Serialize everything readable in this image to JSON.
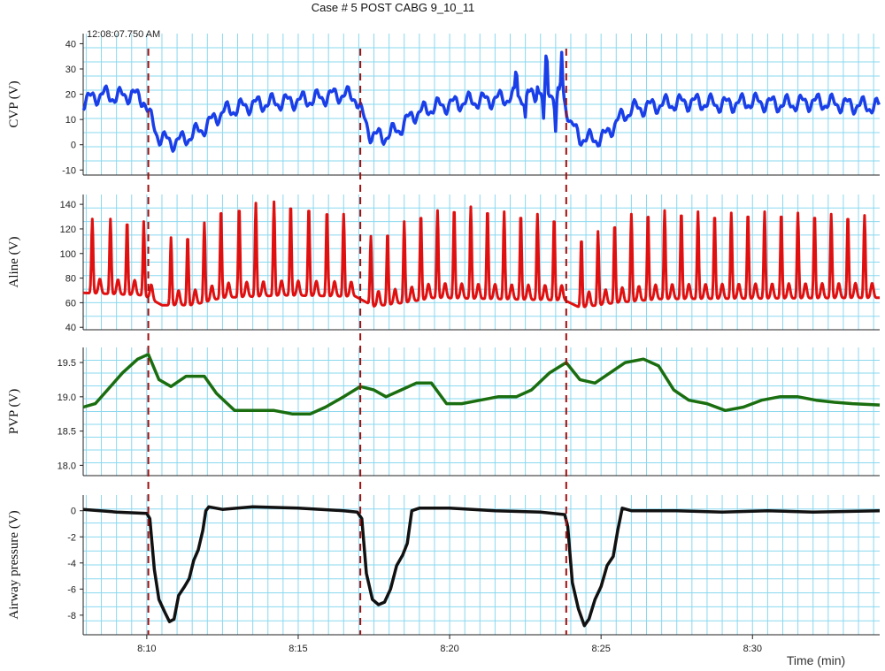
{
  "chart_data": {
    "type": "line",
    "title": "Case # 5 POST CABG 9_10_11",
    "timestamp": "12:08:07.750  AM",
    "xlabel": "Time (min)",
    "x_ticks": [
      "8:10",
      "8:15",
      "8:20",
      "8:25",
      "8:30"
    ],
    "x_tick_values": [
      10,
      15,
      20,
      25,
      30
    ],
    "xlim": [
      7.9,
      34.2
    ],
    "event_lines_x": [
      10.05,
      17.05,
      23.85
    ],
    "colors": {
      "cvp": "#1a3fe8",
      "aline": "#e01010",
      "pvp": "#1a6e10",
      "airway": "#111111",
      "grid": "#8ad8ef",
      "event": "#a01010"
    },
    "panels": [
      {
        "id": "cvp",
        "ylabel": "CVP (V)",
        "ylim": [
          -12,
          44
        ],
        "yticks": [
          -10,
          0,
          10,
          20,
          30,
          40
        ],
        "ytick_labels": [
          "-10",
          "0",
          "10",
          "20",
          "30",
          "40"
        ],
        "series": {
          "color": "cvp",
          "x": [
            7.9,
            8.5,
            9.0,
            9.5,
            9.9,
            10.1,
            10.4,
            10.8,
            11.2,
            11.8,
            12.5,
            13.5,
            14.5,
            15.5,
            16.3,
            16.9,
            17.1,
            17.4,
            17.8,
            18.3,
            18.8,
            19.5,
            20.5,
            21.5,
            22.2,
            22.8,
            23.3,
            23.8,
            24.0,
            24.3,
            24.7,
            25.1,
            25.5,
            26.0,
            27.0,
            28.0,
            29.0,
            30.0,
            31.0,
            32.0,
            33.0,
            34.2
          ],
          "y": [
            17,
            20,
            19,
            20,
            18,
            11,
            3,
            1,
            2,
            6,
            13,
            16,
            17,
            18,
            20,
            19,
            12,
            4,
            3,
            6,
            12,
            15,
            17,
            18,
            19,
            20,
            21,
            18,
            8,
            3,
            2,
            3,
            9,
            14,
            16,
            17,
            16,
            17,
            16,
            17,
            16,
            15
          ],
          "spikes": [
            {
              "x": 22.2,
              "y": 31
            },
            {
              "x": 22.5,
              "y": 10
            },
            {
              "x": 22.9,
              "y": 25
            },
            {
              "x": 23.1,
              "y": 8
            },
            {
              "x": 23.2,
              "y": 37
            },
            {
              "x": 23.5,
              "y": 6
            },
            {
              "x": 23.7,
              "y": 36
            }
          ]
        }
      },
      {
        "id": "aline",
        "ylabel": "Aline (V)",
        "ylim": [
          38,
          148
        ],
        "yticks": [
          40,
          60,
          80,
          100,
          120,
          140
        ],
        "ytick_labels": [
          "40",
          "60",
          "80",
          "100",
          "120",
          "140"
        ],
        "series": {
          "color": "aline",
          "beats": [
            {
              "x": 8.2,
              "peak": 128
            },
            {
              "x": 8.8,
              "peak": 128
            },
            {
              "x": 9.35,
              "peak": 127
            },
            {
              "x": 9.9,
              "peak": 126
            },
            {
              "x": 10.8,
              "peak": 113
            },
            {
              "x": 11.35,
              "peak": 115
            },
            {
              "x": 11.9,
              "peak": 125
            },
            {
              "x": 12.45,
              "peak": 137
            },
            {
              "x": 13.05,
              "peak": 139
            },
            {
              "x": 13.6,
              "peak": 141
            },
            {
              "x": 14.2,
              "peak": 142
            },
            {
              "x": 14.75,
              "peak": 141
            },
            {
              "x": 15.35,
              "peak": 139
            },
            {
              "x": 15.95,
              "peak": 136
            },
            {
              "x": 16.5,
              "peak": 132
            },
            {
              "x": 17.4,
              "peak": 114
            },
            {
              "x": 17.95,
              "peak": 118
            },
            {
              "x": 18.5,
              "peak": 126
            },
            {
              "x": 19.05,
              "peak": 133
            },
            {
              "x": 19.6,
              "peak": 135
            },
            {
              "x": 20.15,
              "peak": 138
            },
            {
              "x": 20.7,
              "peak": 138
            },
            {
              "x": 21.25,
              "peak": 137
            },
            {
              "x": 21.8,
              "peak": 134
            },
            {
              "x": 22.35,
              "peak": 133
            },
            {
              "x": 22.9,
              "peak": 132
            },
            {
              "x": 23.45,
              "peak": 130
            },
            {
              "x": 24.35,
              "peak": 113
            },
            {
              "x": 24.9,
              "peak": 118
            },
            {
              "x": 25.45,
              "peak": 125
            },
            {
              "x": 26.0,
              "peak": 132
            },
            {
              "x": 26.55,
              "peak": 134
            },
            {
              "x": 27.1,
              "peak": 135
            },
            {
              "x": 27.65,
              "peak": 135
            },
            {
              "x": 28.2,
              "peak": 134
            },
            {
              "x": 28.75,
              "peak": 133
            },
            {
              "x": 29.3,
              "peak": 133
            },
            {
              "x": 29.85,
              "peak": 134
            },
            {
              "x": 30.4,
              "peak": 134
            },
            {
              "x": 30.95,
              "peak": 134
            },
            {
              "x": 31.5,
              "peak": 133
            },
            {
              "x": 32.05,
              "peak": 133
            },
            {
              "x": 32.6,
              "peak": 132
            },
            {
              "x": 33.15,
              "peak": 132
            },
            {
              "x": 33.7,
              "peak": 131
            }
          ],
          "baseline_x": [
            7.9,
            9.9,
            10.5,
            11.5,
            12.5,
            14.5,
            16.9,
            17.5,
            18.5,
            19.5,
            21.5,
            23.8,
            24.3,
            25.5,
            27.0,
            34.2
          ],
          "baseline_y": [
            68,
            66,
            58,
            58,
            64,
            66,
            65,
            57,
            60,
            64,
            63,
            62,
            56,
            60,
            63,
            64
          ]
        }
      },
      {
        "id": "pvp",
        "ylabel": "PVP (V)",
        "ylim": [
          17.85,
          19.72
        ],
        "yticks": [
          18.0,
          18.5,
          19.0,
          19.5
        ],
        "ytick_labels": [
          "18.0",
          "18.5",
          "19.0",
          "19.5"
        ],
        "series": {
          "color": "pvp",
          "x": [
            7.9,
            8.3,
            8.7,
            9.2,
            9.7,
            10.05,
            10.4,
            10.8,
            11.3,
            11.9,
            12.3,
            12.9,
            13.5,
            14.2,
            14.8,
            15.4,
            15.9,
            16.5,
            17.05,
            17.5,
            17.9,
            18.4,
            18.9,
            19.4,
            19.9,
            20.4,
            21.0,
            21.6,
            22.2,
            22.7,
            23.3,
            23.85,
            24.3,
            24.8,
            25.3,
            25.8,
            26.4,
            26.9,
            27.4,
            27.9,
            28.5,
            29.1,
            29.7,
            30.3,
            30.9,
            31.5,
            32.1,
            32.7,
            33.3,
            34.2
          ],
          "y": [
            18.85,
            18.9,
            19.1,
            19.35,
            19.55,
            19.62,
            19.25,
            19.15,
            19.3,
            19.3,
            19.05,
            18.8,
            18.8,
            18.8,
            18.75,
            18.75,
            18.85,
            19.0,
            19.15,
            19.1,
            19.0,
            19.1,
            19.2,
            19.2,
            18.9,
            18.9,
            18.95,
            19.0,
            19.0,
            19.1,
            19.35,
            19.5,
            19.25,
            19.2,
            19.35,
            19.5,
            19.55,
            19.45,
            19.1,
            18.95,
            18.9,
            18.8,
            18.85,
            18.95,
            19.0,
            19.0,
            18.95,
            18.92,
            18.9,
            18.88
          ]
        }
      },
      {
        "id": "airway",
        "ylabel": "Airway pressure (V)",
        "ylim": [
          -9.5,
          1.2
        ],
        "yticks": [
          -8,
          -6,
          -4,
          -2,
          0
        ],
        "ytick_labels": [
          "-8",
          "-6",
          "-4",
          "-2",
          "0"
        ],
        "series": {
          "color": "airway",
          "x": [
            7.9,
            9.0,
            10.0,
            10.1,
            10.25,
            10.4,
            10.6,
            10.75,
            10.9,
            11.05,
            11.25,
            11.4,
            11.55,
            11.7,
            11.85,
            11.95,
            12.05,
            12.5,
            13.5,
            15.0,
            16.5,
            16.95,
            17.1,
            17.25,
            17.45,
            17.65,
            17.85,
            18.05,
            18.25,
            18.45,
            18.6,
            18.75,
            19.0,
            20.0,
            21.5,
            23.0,
            23.8,
            23.9,
            24.05,
            24.25,
            24.45,
            24.6,
            24.8,
            25.0,
            25.2,
            25.4,
            25.55,
            25.7,
            26.0,
            27.5,
            29.0,
            30.5,
            32.0,
            34.2
          ],
          "y": [
            0.1,
            -0.1,
            -0.2,
            -0.6,
            -4.5,
            -6.8,
            -7.8,
            -8.5,
            -8.3,
            -6.5,
            -5.8,
            -5.2,
            -3.8,
            -3.0,
            -1.5,
            0.0,
            0.3,
            0.1,
            0.3,
            0.2,
            0.0,
            -0.1,
            -0.6,
            -4.8,
            -6.8,
            -7.2,
            -7.0,
            -6.0,
            -4.2,
            -3.4,
            -2.5,
            0.0,
            0.2,
            0.2,
            0.0,
            -0.1,
            -0.3,
            -1.2,
            -5.5,
            -7.5,
            -8.8,
            -8.3,
            -6.8,
            -5.8,
            -4.2,
            -3.5,
            -1.5,
            0.2,
            0.0,
            0.0,
            -0.1,
            0.0,
            -0.1,
            0.0
          ]
        }
      }
    ]
  }
}
